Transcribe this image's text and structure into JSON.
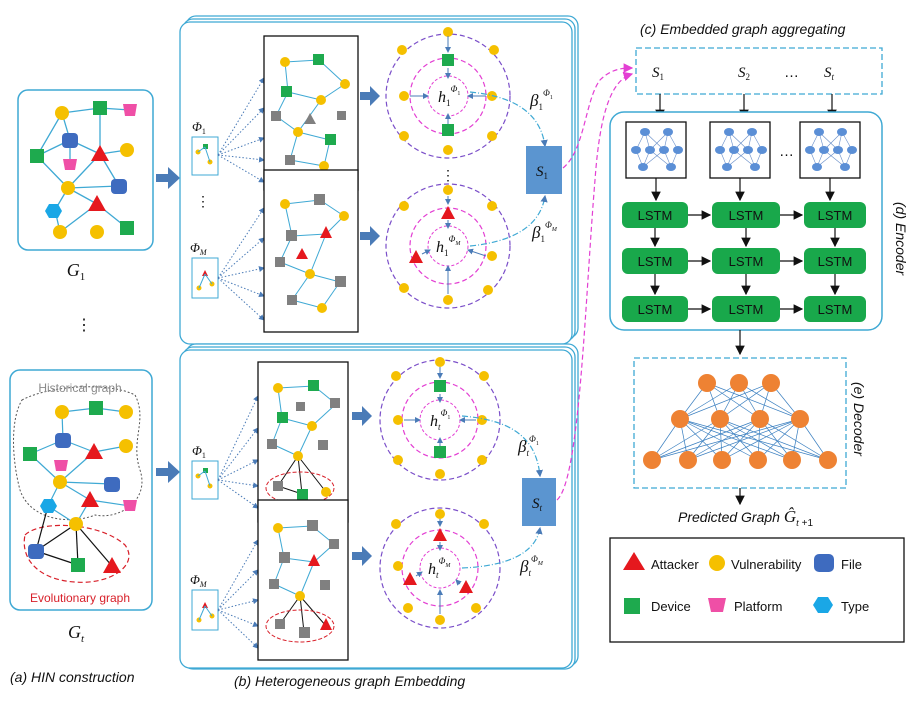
{
  "captions": {
    "a": "(a) HIN construction",
    "b": "(b) Heterogeneous graph Embedding",
    "c": "(c) Embedded graph aggregating",
    "d": "(d) Encoder",
    "e": "(e) Decoder"
  },
  "hin": {
    "g1_label": "G1",
    "gt_label": "Gt",
    "vdots": "⋮",
    "historical_label": "Historical graph",
    "evolutionary_label": "Evolutionary graph"
  },
  "embedding": {
    "phi_1": "Φ1",
    "phi_m": "ΦM",
    "vdots": "⋮",
    "s1": "S1",
    "st": "St",
    "h1_phi1": "h1Φ1",
    "h1_phim": "h1ΦM",
    "ht_phi1": "htΦ1",
    "ht_phim": "htΦM",
    "beta1_phi1": "β1Φ1",
    "beta1_phim": "β1ΦM",
    "betat_phi1": "βtΦ1",
    "betat_phim": "βtΦM"
  },
  "aggregating": {
    "inputs": [
      "S1",
      "S2",
      "…",
      "St"
    ]
  },
  "encoder": {
    "cell_label": "LSTM",
    "ellipsis": "…"
  },
  "decoder": {
    "predicted": "Predicted Graph Ĝt+1"
  },
  "legend": [
    {
      "icon": "red-triangle",
      "label": "Attacker"
    },
    {
      "icon": "yellow-circle",
      "label": "Vulnerability"
    },
    {
      "icon": "blue-cylinder",
      "label": "File"
    },
    {
      "icon": "green-square",
      "label": "Device"
    },
    {
      "icon": "pink-trapezoid",
      "label": "Platform"
    },
    {
      "icon": "cyan-hexagon",
      "label": "Type"
    }
  ],
  "colors": {
    "frame": "#3fa9d4",
    "attacker": "#e5181e",
    "vulnerability": "#f5c000",
    "file": "#3e6bbf",
    "device": "#1eaa4e",
    "platform": "#ef4fa6",
    "type": "#1aa7e6",
    "lstm": "#19a84b",
    "decoder_node": "#ee8233",
    "encoder_node": "#5b8fd6",
    "s_box": "#5b95d0",
    "arrow": "#4a7bb7",
    "magenta_dash": "#e33fd3",
    "purple_dash": "#7b4fc9",
    "red_dash": "#d8202a",
    "gray_node": "#808080"
  }
}
